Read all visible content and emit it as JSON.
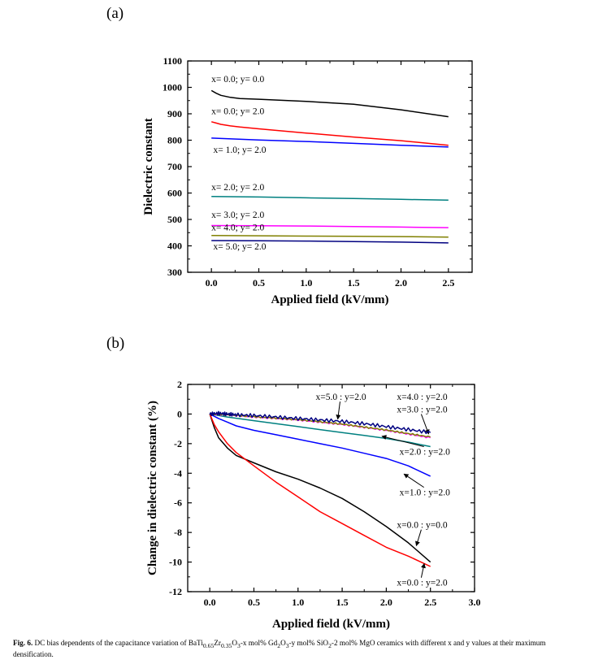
{
  "figure": {
    "panel_a_label": "(a)",
    "panel_b_label": "(b)",
    "caption_fig": "Fig. 6.",
    "caption_html": "DC bias dependents of the capacitance variation of BaTi<sub>0.65</sub>Zr<sub>0.35</sub>O<sub>3</sub>-x mol% Gd<sub>2</sub>O<sub>3</sub>-y mol% SiO<sub>2</sub>-2 mol% MgO ceramics with different x and y values at their maximum densification."
  },
  "chart_data": [
    {
      "type": "line",
      "title": "",
      "xlabel": "Applied field (kV/mm)",
      "ylabel": "Dielectric constant",
      "xlim": [
        -0.25,
        2.75
      ],
      "ylim": [
        300,
        1100
      ],
      "xticks": [
        0.0,
        0.5,
        1.0,
        1.5,
        2.0,
        2.5
      ],
      "xtick_labels": [
        "0.0",
        "0.5",
        "1.0",
        "1.5",
        "2.0",
        "2.5"
      ],
      "yticks": [
        300,
        400,
        500,
        600,
        700,
        800,
        900,
        1000,
        1100
      ],
      "ytick_labels": [
        "300",
        "400",
        "500",
        "600",
        "700",
        "800",
        "900",
        "1000",
        "1100"
      ],
      "grid": false,
      "series": [
        {
          "name": "x= 0.0; y= 0.0",
          "color": "#000000",
          "x": [
            0.0,
            0.05,
            0.1,
            0.2,
            0.3,
            0.5,
            1.0,
            1.5,
            2.0,
            2.5
          ],
          "y": [
            988,
            978,
            970,
            962,
            958,
            955,
            947,
            936,
            915,
            889
          ],
          "label_x": 0.0,
          "label_y": 1020
        },
        {
          "name": "x= 0.0; y= 2.0",
          "color": "#ff0000",
          "x": [
            0.0,
            0.05,
            0.1,
            0.2,
            0.3,
            0.5,
            1.0,
            1.5,
            2.0,
            2.5
          ],
          "y": [
            870,
            865,
            860,
            854,
            850,
            843,
            827,
            812,
            798,
            781
          ],
          "label_x": 0.0,
          "label_y": 898
        },
        {
          "name": "x= 1.0; y= 2.0",
          "color": "#0000ff",
          "x": [
            0.0,
            0.5,
            1.0,
            1.5,
            2.0,
            2.5
          ],
          "y": [
            808,
            801,
            795,
            788,
            781,
            774
          ],
          "label_x": 0.02,
          "label_y": 753
        },
        {
          "name": "x= 2.0; y= 2.0",
          "color": "#008080",
          "x": [
            0.0,
            0.5,
            1.0,
            1.5,
            2.0,
            2.5
          ],
          "y": [
            587,
            585,
            582,
            579,
            576,
            573
          ],
          "label_x": 0.0,
          "label_y": 611
        },
        {
          "name": "x= 3.0; y= 2.0",
          "color": "#ff00ff",
          "x": [
            0.0,
            0.5,
            1.0,
            1.5,
            2.0,
            2.5
          ],
          "y": [
            477,
            476,
            475,
            473,
            471,
            469
          ],
          "label_x": 0.0,
          "label_y": 506
        },
        {
          "name": "x= 4.0; y= 2.0",
          "color": "#808000",
          "x": [
            0.0,
            0.5,
            1.0,
            1.5,
            2.0,
            2.5
          ],
          "y": [
            439,
            438,
            437,
            436,
            435,
            433
          ],
          "label_x": 0.0,
          "label_y": 458
        },
        {
          "name": "x= 5.0; y= 2.0",
          "color": "#000080",
          "x": [
            0.0,
            0.5,
            1.0,
            1.5,
            2.0,
            2.5
          ],
          "y": [
            420,
            419,
            418,
            416,
            414,
            411
          ],
          "label_x": 0.02,
          "label_y": 386
        }
      ]
    },
    {
      "type": "line",
      "title": "",
      "xlabel": "Applied field (kV/mm)",
      "ylabel": "Change in dielectric constant (%)",
      "xlim": [
        -0.25,
        3.0
      ],
      "ylim": [
        -12,
        2
      ],
      "xticks": [
        0.0,
        0.5,
        1.0,
        1.5,
        2.0,
        2.5,
        3.0
      ],
      "xtick_labels": [
        "0.0",
        "0.5",
        "1.0",
        "1.5",
        "2.0",
        "2.5",
        "3.0"
      ],
      "yticks": [
        -12,
        -10,
        -8,
        -6,
        -4,
        -2,
        0,
        2
      ],
      "ytick_labels": [
        "-12",
        "-10",
        "-8",
        "-6",
        "-4",
        "-2",
        "0",
        "2"
      ],
      "grid": false,
      "series": [
        {
          "name": "x=0.0 : y=0.0",
          "color": "#000000",
          "x": [
            0.0,
            0.05,
            0.1,
            0.2,
            0.3,
            0.5,
            0.75,
            1.0,
            1.25,
            1.5,
            1.75,
            2.0,
            2.25,
            2.5
          ],
          "y": [
            0.0,
            -0.9,
            -1.6,
            -2.3,
            -2.8,
            -3.3,
            -3.9,
            -4.4,
            -5.0,
            -5.7,
            -6.6,
            -7.6,
            -8.7,
            -10.0
          ],
          "label_x": 2.12,
          "label_y": -7.7,
          "arrow_x": 2.34,
          "arrow_y": -8.9
        },
        {
          "name": "x=0.0 : y=2.0",
          "color": "#ff0000",
          "x": [
            0.0,
            0.05,
            0.1,
            0.2,
            0.3,
            0.5,
            0.75,
            1.0,
            1.25,
            1.5,
            1.75,
            2.0,
            2.25,
            2.5
          ],
          "y": [
            0.0,
            -0.7,
            -1.2,
            -2.0,
            -2.6,
            -3.5,
            -4.6,
            -5.6,
            -6.6,
            -7.4,
            -8.2,
            -9.0,
            -9.6,
            -10.3
          ],
          "label_x": 2.12,
          "label_y": -11.6,
          "arrow_x": 2.43,
          "arrow_y": -10.1
        },
        {
          "name": "x=1.0 : y=2.0",
          "color": "#0000ff",
          "x": [
            0.0,
            0.1,
            0.2,
            0.3,
            0.5,
            0.75,
            1.0,
            1.25,
            1.5,
            1.75,
            2.0,
            2.25,
            2.5
          ],
          "y": [
            0.0,
            -0.3,
            -0.55,
            -0.8,
            -1.1,
            -1.4,
            -1.7,
            -2.0,
            -2.3,
            -2.65,
            -3.0,
            -3.5,
            -4.2
          ],
          "label_x": 2.15,
          "label_y": -5.5,
          "arrow_x": 2.2,
          "arrow_y": -4.05
        },
        {
          "name": "x=2.0 : y=2.0",
          "color": "#008080",
          "x": [
            0.0,
            0.1,
            0.2,
            0.5,
            0.75,
            1.0,
            1.25,
            1.5,
            1.75,
            2.0,
            2.25,
            2.5
          ],
          "y": [
            0.0,
            -0.1,
            -0.2,
            -0.45,
            -0.65,
            -0.85,
            -1.05,
            -1.25,
            -1.45,
            -1.65,
            -1.9,
            -2.2
          ],
          "label_x": 2.15,
          "label_y": -2.75,
          "arrow_x": 1.95,
          "arrow_y": -1.5
        },
        {
          "name": "x=3.0 : y=2.0",
          "color": "#ff00ff",
          "x": [
            0.0,
            0.25,
            0.5,
            0.75,
            1.0,
            1.25,
            1.5,
            1.75,
            2.0,
            2.25,
            2.5
          ],
          "y": [
            0.0,
            -0.08,
            -0.2,
            -0.3,
            -0.4,
            -0.55,
            -0.7,
            -0.9,
            -1.1,
            -1.35,
            -1.6
          ],
          "label_x": 2.12,
          "label_y": 0.1,
          "arrow_x": 2.48,
          "arrow_y": -1.35
        },
        {
          "name": "x=4.0 : y=2.0",
          "color": "#808000",
          "x": [
            0.0,
            0.25,
            0.5,
            0.75,
            1.0,
            1.25,
            1.5,
            1.75,
            2.0,
            2.25,
            2.5
          ],
          "y": [
            0.0,
            -0.07,
            -0.18,
            -0.28,
            -0.38,
            -0.52,
            -0.68,
            -0.88,
            -1.08,
            -1.32,
            -1.55
          ],
          "label_x": 2.12,
          "label_y": 0.95
        },
        {
          "name": "x=5.0 : y=2.0",
          "color": "#000080",
          "x": [
            0.0,
            0.1,
            0.2,
            0.3,
            0.5,
            0.75,
            1.0,
            1.25,
            1.5,
            1.75,
            2.0,
            2.25,
            2.5
          ],
          "y": [
            0.0,
            0.05,
            0.0,
            -0.05,
            -0.1,
            -0.2,
            -0.3,
            -0.4,
            -0.5,
            -0.65,
            -0.85,
            -1.05,
            -1.25
          ],
          "label_x": 1.2,
          "label_y": 0.95,
          "arrow_x": 1.45,
          "arrow_y": -0.35
        }
      ]
    }
  ]
}
